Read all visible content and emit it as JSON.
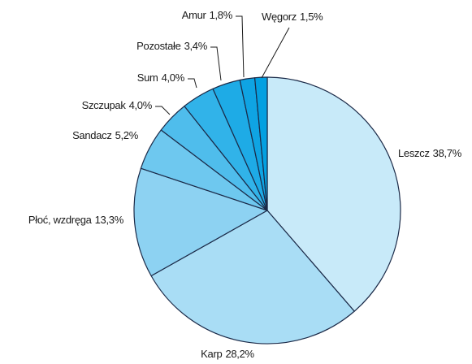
{
  "chart_data": {
    "type": "pie",
    "categories": [
      "Leszcz",
      "Karp",
      "Płoć, wzdręga",
      "Sandacz",
      "Szczupak",
      "Sum",
      "Pozostałe",
      "Amur",
      "Węgorz"
    ],
    "values": [
      38.7,
      28.2,
      13.3,
      5.2,
      4.0,
      4.0,
      3.4,
      1.8,
      1.5
    ],
    "value_labels": [
      "38,7%",
      "28,2%",
      "13,3%",
      "5,2%",
      "4,0%",
      "4,0%",
      "3,4%",
      "1,8%",
      "1,5%"
    ],
    "colors": [
      "#c8eaf9",
      "#a9ddf5",
      "#8dd2f2",
      "#6ec8ef",
      "#4fbdec",
      "#31b3e9",
      "#1eabe6",
      "#0fa4e3",
      "#03a0e1"
    ]
  }
}
